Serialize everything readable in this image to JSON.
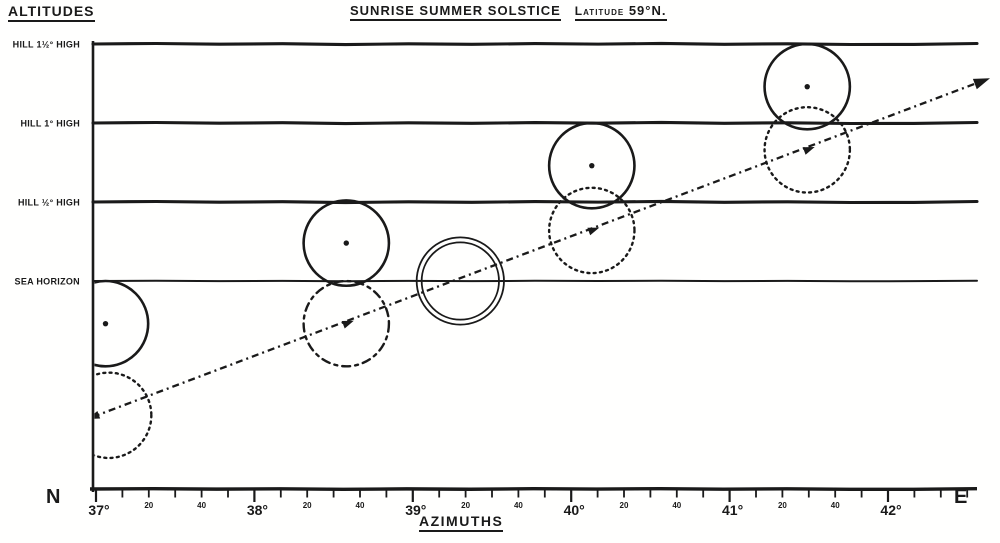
{
  "figure": {
    "altitudes_heading": "ALTITUDES",
    "azimuths_heading": "AZIMUTHS",
    "title_main": "SUNRISE SUMMER SOLSTICE",
    "title_latitude_word": "Latitude",
    "title_latitude_value": "59°N.",
    "compass_left": "N",
    "compass_right": "E"
  },
  "chart_data": {
    "type": "scatter",
    "title": "SUNRISE SUMMER SOLSTICE — Latitude 59°N",
    "xlabel": "AZIMUTHS",
    "ylabel": "ALTITUDES",
    "x_axis": {
      "unit": "degrees east of north",
      "range": [
        36.98,
        42.55
      ],
      "major_ticks": [
        {
          "value": 37,
          "label": "37°"
        },
        {
          "value": 38,
          "label": "38°"
        },
        {
          "value": 39,
          "label": "39°"
        },
        {
          "value": 40,
          "label": "40°"
        },
        {
          "value": 41,
          "label": "41°"
        },
        {
          "value": 42,
          "label": "42°"
        }
      ],
      "minor_tick_interval_minutes": 10,
      "minor_tick_labels": [
        {
          "offset_deg": 0.3333,
          "label": "20"
        },
        {
          "offset_deg": 0.6667,
          "label": "40"
        }
      ],
      "left_terminal": "N",
      "right_terminal": "E"
    },
    "horizon_lines": [
      {
        "label": "HILL 1½° HIGH",
        "altitude_deg": 1.5,
        "weight": "thick"
      },
      {
        "label": "HILL 1° HIGH",
        "altitude_deg": 1.0,
        "weight": "thick"
      },
      {
        "label": "HILL ½° HIGH",
        "altitude_deg": 0.5,
        "weight": "thick"
      },
      {
        "label": "SEA HORIZON",
        "altitude_deg": 0.0,
        "weight": "thin"
      }
    ],
    "sun_disc_radius_deg": 0.27,
    "suns": [
      {
        "azimuth_deg": 37.06,
        "altitude_deg": -0.27,
        "style": "solid",
        "center_dot": true,
        "center_arrow": false
      },
      {
        "azimuth_deg": 37.08,
        "altitude_deg": -0.85,
        "style": "dotted",
        "center_dot": false,
        "center_arrow": false
      },
      {
        "azimuth_deg": 38.58,
        "altitude_deg": 0.24,
        "style": "solid",
        "center_dot": true,
        "center_arrow": false
      },
      {
        "azimuth_deg": 38.58,
        "altitude_deg": -0.27,
        "style": "dashed",
        "center_dot": false,
        "center_arrow": true
      },
      {
        "azimuth_deg": 39.3,
        "altitude_deg": 0.0,
        "style": "double",
        "center_dot": false,
        "center_arrow": false
      },
      {
        "azimuth_deg": 40.13,
        "altitude_deg": 0.73,
        "style": "solid",
        "center_dot": true,
        "center_arrow": false
      },
      {
        "azimuth_deg": 40.13,
        "altitude_deg": 0.32,
        "style": "dotted",
        "center_dot": false,
        "center_arrow": true
      },
      {
        "azimuth_deg": 41.49,
        "altitude_deg": 1.23,
        "style": "solid",
        "center_dot": true,
        "center_arrow": false
      },
      {
        "azimuth_deg": 41.49,
        "altitude_deg": 0.83,
        "style": "dotted",
        "center_dot": false,
        "center_arrow": true
      }
    ],
    "sun_path": {
      "style": "dash-dot",
      "start": {
        "azimuth_deg": 36.98,
        "altitude_deg": -0.86
      },
      "end": {
        "azimuth_deg": 42.58,
        "altitude_deg": 1.26
      },
      "start_arrow": true,
      "end_arrow": true
    },
    "ink_color": "#1a1a1a",
    "paper_color": "#fffffe"
  }
}
